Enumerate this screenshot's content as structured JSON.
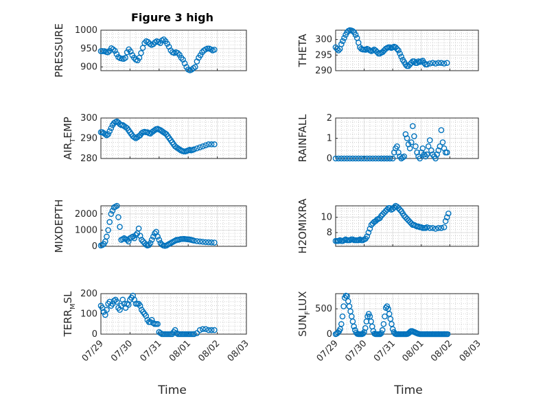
{
  "figure": {
    "title": "Figure 3 high",
    "xlabel": "Time"
  },
  "colors": {
    "marker": "#0072BD",
    "axis": "#262626",
    "grid": "#b0b0b0",
    "background": "#ffffff"
  },
  "chart_data": [
    {
      "type": "scatter",
      "title": "Figure 3 high",
      "ylabel": "PRESSURE",
      "ylabel_html": "",
      "ylim": [
        890,
        1000
      ],
      "yticks": [
        900,
        950,
        1000
      ],
      "xlim": [
        0,
        5
      ],
      "xticks": [
        "07/29",
        "07/30",
        "07/31",
        "08/01",
        "08/02",
        "08/03"
      ],
      "xticklabels_shown": false,
      "grid": true,
      "x": [
        0,
        0.06,
        0.12,
        0.18,
        0.24,
        0.3,
        0.36,
        0.42,
        0.48,
        0.54,
        0.6,
        0.66,
        0.72,
        0.78,
        0.84,
        0.9,
        0.96,
        1.02,
        1.08,
        1.14,
        1.2,
        1.26,
        1.32,
        1.38,
        1.44,
        1.5,
        1.56,
        1.62,
        1.68,
        1.74,
        1.8,
        1.86,
        1.92,
        1.98,
        2.04,
        2.1,
        2.16,
        2.22,
        2.28,
        2.34,
        2.4,
        2.46,
        2.52,
        2.58,
        2.64,
        2.7,
        2.76,
        2.82,
        2.88,
        2.94,
        3.0,
        3.06,
        3.12,
        3.18,
        3.24,
        3.3,
        3.36,
        3.42,
        3.48,
        3.54,
        3.6,
        3.66,
        3.72,
        3.78,
        3.84,
        3.9
      ],
      "y": [
        943,
        943,
        943,
        941,
        940,
        944,
        951,
        948,
        944,
        935,
        927,
        924,
        923,
        922,
        925,
        940,
        948,
        942,
        932,
        925,
        920,
        918,
        925,
        938,
        952,
        965,
        970,
        968,
        963,
        960,
        962,
        967,
        970,
        968,
        965,
        972,
        975,
        970,
        963,
        955,
        945,
        940,
        938,
        940,
        938,
        933,
        925,
        920,
        910,
        900,
        893,
        891,
        893,
        897,
        900,
        915,
        925,
        932,
        940,
        945,
        948,
        950,
        950,
        948,
        945,
        947
      ]
    },
    {
      "type": "scatter",
      "ylabel": "THETA",
      "ylim": [
        290,
        303
      ],
      "yticks": [
        290,
        295,
        300
      ],
      "xlim": [
        0,
        5
      ],
      "xticks": [
        "07/29",
        "07/30",
        "07/31",
        "08/01",
        "08/02",
        "08/03"
      ],
      "xticklabels_shown": false,
      "grid": true,
      "x": [
        0,
        0.05,
        0.1,
        0.15,
        0.2,
        0.25,
        0.3,
        0.35,
        0.4,
        0.45,
        0.5,
        0.55,
        0.6,
        0.65,
        0.7,
        0.75,
        0.8,
        0.85,
        0.9,
        0.95,
        1.0,
        1.05,
        1.1,
        1.15,
        1.2,
        1.25,
        1.3,
        1.35,
        1.4,
        1.45,
        1.5,
        1.55,
        1.6,
        1.65,
        1.7,
        1.75,
        1.8,
        1.85,
        1.9,
        1.95,
        2.0,
        2.05,
        2.1,
        2.15,
        2.2,
        2.25,
        2.3,
        2.35,
        2.4,
        2.45,
        2.5,
        2.55,
        2.6,
        2.65,
        2.7,
        2.75,
        2.8,
        2.85,
        2.9,
        2.95,
        3.0,
        3.05,
        3.1,
        3.15,
        3.2,
        3.3,
        3.4,
        3.5,
        3.6,
        3.7,
        3.8,
        3.9
      ],
      "y": [
        297.5,
        297,
        296.5,
        297,
        298.5,
        299.5,
        300.5,
        301.5,
        302.3,
        302.8,
        303,
        302.9,
        302.7,
        302.3,
        301.5,
        300.5,
        299,
        297.5,
        297,
        296.8,
        296.8,
        296.7,
        297,
        296.8,
        296.5,
        296.3,
        296.5,
        296.8,
        296.5,
        296,
        295.5,
        295.5,
        295.8,
        296,
        296.5,
        297,
        297.3,
        297.5,
        297.5,
        297.3,
        297.5,
        297.7,
        297.5,
        297,
        296.5,
        295.5,
        294.5,
        293.5,
        292.8,
        292,
        291.5,
        291.5,
        292,
        292.5,
        293,
        293,
        292.5,
        292.5,
        293,
        292.8,
        293,
        293.2,
        292.5,
        292,
        292,
        292.3,
        292.5,
        292.3,
        292.5,
        292.5,
        292.3,
        292.5
      ]
    },
    {
      "type": "scatter",
      "ylabel": "AIR_TEMP",
      "ylabel_main": "AIR",
      "ylabel_sub": "T",
      "ylabel_rest": "EMP",
      "ylim": [
        280,
        300
      ],
      "yticks": [
        280,
        290,
        300
      ],
      "xlim": [
        0,
        5
      ],
      "xticks": [
        "07/29",
        "07/30",
        "07/31",
        "08/01",
        "08/02",
        "08/03"
      ],
      "xticklabels_shown": false,
      "grid": true,
      "x": [
        0,
        0.05,
        0.1,
        0.15,
        0.2,
        0.25,
        0.3,
        0.35,
        0.4,
        0.45,
        0.5,
        0.55,
        0.6,
        0.65,
        0.7,
        0.75,
        0.8,
        0.85,
        0.9,
        0.95,
        1.0,
        1.05,
        1.1,
        1.15,
        1.2,
        1.25,
        1.3,
        1.35,
        1.4,
        1.45,
        1.5,
        1.55,
        1.6,
        1.65,
        1.7,
        1.75,
        1.8,
        1.85,
        1.9,
        1.95,
        2.0,
        2.05,
        2.1,
        2.15,
        2.2,
        2.25,
        2.3,
        2.35,
        2.4,
        2.45,
        2.5,
        2.55,
        2.6,
        2.65,
        2.7,
        2.75,
        2.8,
        2.85,
        2.9,
        2.95,
        3.0,
        3.05,
        3.1,
        3.15,
        3.2,
        3.3,
        3.4,
        3.5,
        3.6,
        3.7,
        3.8,
        3.9
      ],
      "y": [
        293,
        293,
        292.5,
        292,
        291.5,
        292,
        293.5,
        295,
        296.5,
        297.5,
        298,
        298.3,
        297.8,
        297,
        296.5,
        296.5,
        296,
        295.5,
        295,
        294,
        293,
        292,
        291,
        290.5,
        290,
        290.5,
        291,
        291.5,
        292.5,
        293,
        293.2,
        293,
        293,
        292.5,
        292.3,
        293,
        293.5,
        294,
        294.5,
        294.7,
        294.3,
        294,
        293.5,
        293,
        292.5,
        292,
        291,
        290,
        289,
        288,
        287,
        286,
        285.5,
        285,
        284.5,
        284,
        283.7,
        283.5,
        283.5,
        283.7,
        284,
        284.3,
        284,
        284.2,
        284.5,
        285,
        285.5,
        286,
        286.5,
        287,
        287,
        287
      ]
    },
    {
      "type": "scatter",
      "ylabel": "RAINFALL",
      "ylim": [
        0,
        2
      ],
      "yticks": [
        0,
        1,
        2
      ],
      "xlim": [
        0,
        5
      ],
      "xticks": [
        "07/29",
        "07/30",
        "07/31",
        "08/01",
        "08/02",
        "08/03"
      ],
      "xticklabels_shown": false,
      "grid": true,
      "x": [
        0,
        0.1,
        0.2,
        0.3,
        0.4,
        0.5,
        0.6,
        0.7,
        0.8,
        0.9,
        1.0,
        1.1,
        1.2,
        1.3,
        1.4,
        1.5,
        1.6,
        1.7,
        1.8,
        1.9,
        2.0,
        2.05,
        2.1,
        2.15,
        2.2,
        2.25,
        2.3,
        2.35,
        2.4,
        2.45,
        2.5,
        2.55,
        2.6,
        2.65,
        2.7,
        2.75,
        2.8,
        2.85,
        2.9,
        2.95,
        3.0,
        3.05,
        3.1,
        3.15,
        3.2,
        3.25,
        3.3,
        3.35,
        3.4,
        3.45,
        3.5,
        3.55,
        3.6,
        3.65,
        3.7,
        3.75,
        3.8,
        3.85,
        3.9,
        1.6,
        1.7,
        1.8,
        1.9
      ],
      "y": [
        0,
        0,
        0,
        0,
        0,
        0,
        0,
        0,
        0,
        0,
        0,
        0,
        0,
        0,
        0,
        0,
        0,
        0,
        0,
        0,
        0,
        0.3,
        0.5,
        0.6,
        0.3,
        0.1,
        0,
        0.05,
        0.1,
        1.2,
        1.0,
        0.7,
        0.5,
        0.8,
        1.6,
        1.1,
        0.6,
        0.3,
        0.1,
        0,
        0.3,
        0.5,
        0.2,
        0.1,
        0.2,
        0.6,
        0.9,
        0.4,
        0.2,
        0.1,
        0,
        0.2,
        0.4,
        0.6,
        1.4,
        0.8,
        0.5,
        0.3,
        0.3,
        0,
        0,
        0,
        0
      ]
    },
    {
      "type": "scatter",
      "ylabel": "MIXDEPTH",
      "ylim": [
        0,
        2500
      ],
      "yticks": [
        0,
        1000,
        2000
      ],
      "xlim": [
        0,
        5
      ],
      "xticks": [
        "07/29",
        "07/30",
        "07/31",
        "08/01",
        "08/02",
        "08/03"
      ],
      "xticklabels_shown": false,
      "grid": true,
      "x": [
        0,
        0.05,
        0.1,
        0.15,
        0.2,
        0.25,
        0.3,
        0.35,
        0.4,
        0.45,
        0.5,
        0.55,
        0.6,
        0.65,
        0.7,
        0.75,
        0.8,
        0.85,
        0.9,
        0.95,
        1.0,
        1.05,
        1.1,
        1.15,
        1.2,
        1.25,
        1.3,
        1.35,
        1.4,
        1.45,
        1.5,
        1.55,
        1.6,
        1.65,
        1.7,
        1.75,
        1.8,
        1.85,
        1.9,
        1.95,
        2.0,
        2.05,
        2.1,
        2.15,
        2.2,
        2.25,
        2.3,
        2.35,
        2.4,
        2.45,
        2.5,
        2.55,
        2.6,
        2.65,
        2.7,
        2.75,
        2.8,
        2.85,
        2.9,
        2.95,
        3.0,
        3.05,
        3.1,
        3.15,
        3.2,
        3.3,
        3.4,
        3.5,
        3.6,
        3.7,
        3.8,
        3.9
      ],
      "y": [
        50,
        80,
        150,
        300,
        600,
        1000,
        1500,
        2000,
        2200,
        2400,
        2450,
        2500,
        1800,
        1200,
        400,
        450,
        500,
        450,
        400,
        300,
        500,
        550,
        600,
        500,
        700,
        800,
        1100,
        650,
        400,
        300,
        200,
        100,
        50,
        80,
        200,
        400,
        600,
        800,
        900,
        600,
        400,
        200,
        100,
        50,
        30,
        50,
        100,
        150,
        200,
        250,
        300,
        350,
        400,
        400,
        420,
        450,
        450,
        460,
        450,
        440,
        430,
        420,
        400,
        380,
        350,
        320,
        300,
        280,
        260,
        250,
        240,
        230
      ]
    },
    {
      "type": "scatter",
      "ylabel": "H2OMIXRA",
      "ylim": [
        6.2,
        11.5
      ],
      "yticks": [
        8,
        10
      ],
      "xlim": [
        0,
        5
      ],
      "xticks": [
        "07/29",
        "07/30",
        "07/31",
        "08/01",
        "08/02",
        "08/03"
      ],
      "xticklabels_shown": false,
      "grid": true,
      "x": [
        0,
        0.05,
        0.1,
        0.15,
        0.2,
        0.25,
        0.3,
        0.35,
        0.4,
        0.45,
        0.5,
        0.55,
        0.6,
        0.65,
        0.7,
        0.75,
        0.8,
        0.85,
        0.9,
        0.95,
        1.0,
        1.05,
        1.1,
        1.15,
        1.2,
        1.25,
        1.3,
        1.35,
        1.4,
        1.45,
        1.5,
        1.55,
        1.6,
        1.65,
        1.7,
        1.75,
        1.8,
        1.85,
        1.9,
        1.95,
        2.0,
        2.05,
        2.1,
        2.15,
        2.2,
        2.25,
        2.3,
        2.35,
        2.4,
        2.45,
        2.5,
        2.55,
        2.6,
        2.65,
        2.7,
        2.75,
        2.8,
        2.85,
        2.9,
        2.95,
        3.0,
        3.05,
        3.1,
        3.15,
        3.2,
        3.3,
        3.4,
        3.5,
        3.6,
        3.7,
        3.8,
        3.85,
        3.9,
        3.95
      ],
      "y": [
        6.9,
        6.9,
        6.9,
        7.0,
        6.9,
        6.9,
        7.0,
        7.1,
        7.0,
        7.0,
        7.0,
        7.1,
        7.1,
        7.0,
        7.0,
        7.0,
        7.0,
        7.1,
        7.0,
        7.0,
        7.1,
        7.2,
        7.5,
        8.0,
        8.5,
        9.0,
        9.2,
        9.4,
        9.5,
        9.7,
        9.8,
        9.9,
        10.2,
        10.4,
        10.6,
        10.8,
        11.0,
        11.2,
        11.2,
        11.0,
        11.1,
        11.3,
        11.5,
        11.4,
        11.2,
        11.0,
        10.8,
        10.5,
        10.2,
        10.0,
        9.8,
        9.6,
        9.4,
        9.2,
        9.0,
        9.0,
        8.9,
        8.8,
        8.8,
        8.7,
        8.7,
        8.6,
        8.6,
        8.6,
        8.7,
        8.6,
        8.6,
        8.5,
        8.6,
        8.6,
        8.7,
        9.5,
        10.0,
        10.5
      ]
    },
    {
      "type": "scatter",
      "ylabel": "TERR_MSL",
      "ylabel_main": "TERR",
      "ylabel_sub": "M",
      "ylabel_rest": "SL",
      "ylim": [
        0,
        200
      ],
      "yticks": [
        0,
        100,
        200
      ],
      "xlim": [
        0,
        5
      ],
      "xticks": [
        "07/29",
        "07/30",
        "07/31",
        "08/01",
        "08/02",
        "08/03"
      ],
      "xticklabels_shown": true,
      "grid": true,
      "x": [
        0,
        0.05,
        0.1,
        0.15,
        0.2,
        0.25,
        0.3,
        0.35,
        0.4,
        0.45,
        0.5,
        0.55,
        0.6,
        0.65,
        0.7,
        0.75,
        0.8,
        0.85,
        0.9,
        0.95,
        1.0,
        1.05,
        1.1,
        1.15,
        1.2,
        1.25,
        1.3,
        1.35,
        1.4,
        1.45,
        1.5,
        1.55,
        1.6,
        1.65,
        1.7,
        1.75,
        1.8,
        1.85,
        1.9,
        1.95,
        2.0,
        2.05,
        2.1,
        2.15,
        2.2,
        2.25,
        2.3,
        2.35,
        2.4,
        2.45,
        2.5,
        2.55,
        2.6,
        2.65,
        2.7,
        2.75,
        2.8,
        2.85,
        2.9,
        2.95,
        3.0,
        3.05,
        3.1,
        3.15,
        3.2,
        3.3,
        3.4,
        3.5,
        3.6,
        3.7,
        3.8,
        3.9
      ],
      "y": [
        140,
        130,
        110,
        95,
        120,
        150,
        160,
        140,
        150,
        165,
        170,
        160,
        130,
        120,
        140,
        170,
        150,
        130,
        150,
        145,
        170,
        180,
        190,
        170,
        150,
        150,
        150,
        140,
        120,
        110,
        100,
        90,
        70,
        60,
        60,
        70,
        55,
        50,
        50,
        50,
        10,
        5,
        0,
        0,
        0,
        0,
        0,
        0,
        0,
        0,
        10,
        20,
        5,
        0,
        0,
        0,
        0,
        0,
        0,
        0,
        0,
        0,
        0,
        0,
        0,
        5,
        20,
        25,
        25,
        20,
        20,
        20
      ]
    },
    {
      "type": "scatter",
      "ylabel": "SUN_FLUX",
      "ylabel_main": "SUN",
      "ylabel_sub": "F",
      "ylabel_rest": "LUX",
      "ylim": [
        0,
        800
      ],
      "yticks": [
        0,
        500
      ],
      "xlim": [
        0,
        5
      ],
      "xticks": [
        "07/29",
        "07/30",
        "07/31",
        "08/01",
        "08/02",
        "08/03"
      ],
      "xticklabels_shown": true,
      "grid": true,
      "x": [
        0,
        0.04,
        0.08,
        0.12,
        0.16,
        0.2,
        0.24,
        0.28,
        0.32,
        0.36,
        0.4,
        0.44,
        0.48,
        0.52,
        0.56,
        0.6,
        0.64,
        0.68,
        0.72,
        0.76,
        0.8,
        0.84,
        0.88,
        0.92,
        0.96,
        1.0,
        1.04,
        1.08,
        1.12,
        1.16,
        1.2,
        1.24,
        1.28,
        1.32,
        1.36,
        1.4,
        1.44,
        1.48,
        1.52,
        1.56,
        1.6,
        1.64,
        1.68,
        1.72,
        1.76,
        1.8,
        1.84,
        1.88,
        1.92,
        1.96,
        2.0,
        2.04,
        2.08,
        2.12,
        2.16,
        2.2,
        2.24,
        2.28,
        2.32,
        2.36,
        2.4,
        2.44,
        2.48,
        2.52,
        2.56,
        2.6,
        2.64,
        2.68,
        2.72,
        2.76,
        2.8,
        2.84,
        2.88,
        2.92,
        2.96,
        3.0,
        3.04,
        3.08,
        3.12,
        3.16,
        3.2,
        3.24,
        3.28,
        3.32,
        3.36,
        3.4,
        3.44,
        3.48,
        3.52,
        3.56,
        3.6,
        3.64,
        3.68,
        3.72,
        3.76,
        3.8,
        3.84,
        3.88,
        3.92
      ],
      "y": [
        0,
        10,
        30,
        60,
        100,
        200,
        350,
        550,
        720,
        760,
        750,
        650,
        550,
        450,
        350,
        250,
        150,
        80,
        30,
        5,
        0,
        0,
        0,
        0,
        10,
        40,
        120,
        250,
        350,
        400,
        350,
        250,
        150,
        60,
        10,
        0,
        0,
        0,
        0,
        0,
        20,
        80,
        200,
        350,
        520,
        550,
        500,
        400,
        300,
        200,
        100,
        40,
        10,
        0,
        0,
        0,
        0,
        0,
        0,
        0,
        0,
        0,
        0,
        5,
        20,
        40,
        60,
        60,
        50,
        40,
        30,
        20,
        10,
        5,
        0,
        0,
        0,
        0,
        0,
        0,
        0,
        0,
        0,
        0,
        0,
        0,
        0,
        0,
        0,
        0,
        0,
        0,
        0,
        0,
        0,
        0,
        0,
        0,
        0
      ]
    }
  ]
}
